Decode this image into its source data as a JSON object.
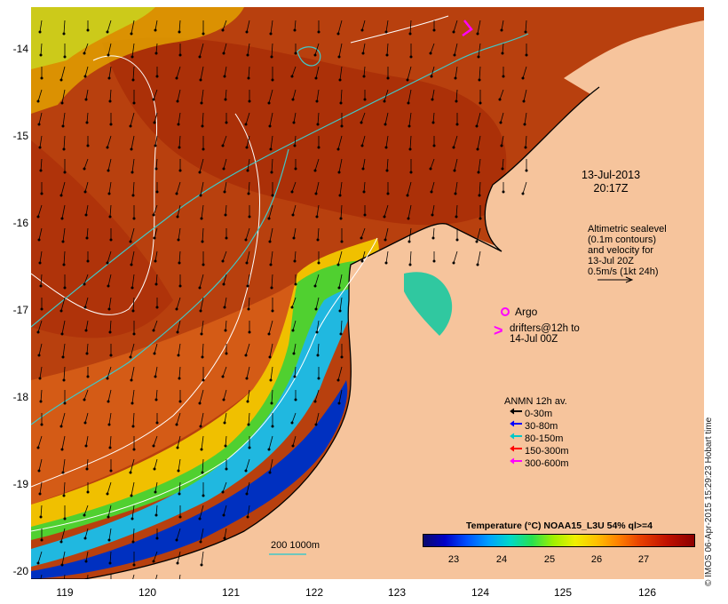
{
  "axes": {
    "y_ticks": [
      "-14",
      "-15",
      "-16",
      "-17",
      "-18",
      "-19",
      "-20"
    ],
    "x_ticks": [
      "119",
      "120",
      "121",
      "122",
      "123",
      "124",
      "125",
      "126"
    ]
  },
  "annotations": {
    "date_line1": "13-Jul-2013",
    "date_line2": "20:17Z",
    "altimetric_lines": [
      "Altimetric sealevel",
      "(0.1m contours)",
      "and velocity for",
      "13-Jul 20Z",
      "0.5m/s (1kt 24h)"
    ],
    "argo_label": "Argo",
    "drifters_line1": "drifters@12h to",
    "drifters_line2": "14-Jul 00Z",
    "isobath_label": "200  1000m"
  },
  "legend": {
    "title": "ANMN 12h av.",
    "items": [
      {
        "label": "0-30m",
        "color": "#000000"
      },
      {
        "label": "30-80m",
        "color": "#0000ff"
      },
      {
        "label": "80-150m",
        "color": "#00c8c8"
      },
      {
        "label": "150-300m",
        "color": "#ff0000"
      },
      {
        "label": "300-600m",
        "color": "#ff00ff"
      }
    ]
  },
  "colorbar": {
    "title": "Temperature (°C) NOAA15_L3U 54% ql>=4",
    "ticks": [
      "23",
      "24",
      "25",
      "26",
      "27"
    ]
  },
  "credit": "© IMOS 06-Apr-2015 15:29:23 Hobart time",
  "colors": {
    "land": "#f6c49c",
    "warm_water": "#b83a10",
    "contour": "#ffffff",
    "isobath": "#40c8c8"
  }
}
